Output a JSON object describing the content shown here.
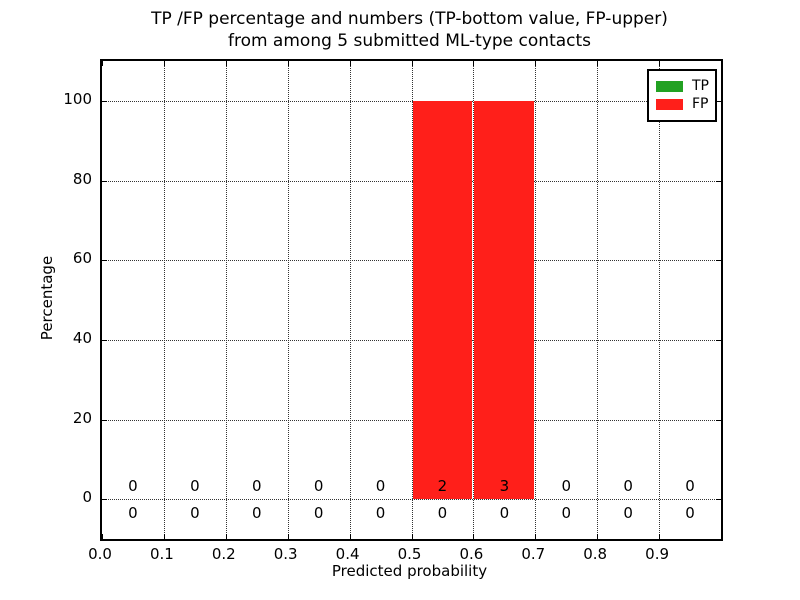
{
  "chart_data": {
    "type": "bar",
    "title": "TP /FP percentage and numbers (TP-bottom value, FP-upper)\nfrom among 5 submitted ML-type contacts",
    "title_line1": "TP /FP percentage and numbers (TP-bottom value, FP-upper)",
    "title_line2": "from among 5 submitted ML-type contacts",
    "xlabel": "Predicted probability",
    "ylabel": "Percentage",
    "xlim": [
      0.0,
      1.0
    ],
    "ylim": [
      -10,
      110
    ],
    "x_tick_values": [
      0.0,
      0.1,
      0.2,
      0.3,
      0.4,
      0.5,
      0.6,
      0.7,
      0.8,
      0.9
    ],
    "x_tick_labels": [
      "0.0",
      "0.1",
      "0.2",
      "0.3",
      "0.4",
      "0.5",
      "0.6",
      "0.7",
      "0.8",
      "0.9"
    ],
    "y_tick_values": [
      0,
      20,
      40,
      60,
      80,
      100
    ],
    "y_tick_labels": [
      "0",
      "20",
      "40",
      "60",
      "80",
      "100"
    ],
    "grid": "dotted",
    "bin_width": 0.1,
    "bin_centers": [
      0.05,
      0.15,
      0.25,
      0.35,
      0.45,
      0.55,
      0.65,
      0.75,
      0.85,
      0.95
    ],
    "series": [
      {
        "name": "TP",
        "color": "#22a122",
        "stack_order": "bottom",
        "percentages": [
          0,
          0,
          0,
          0,
          0,
          0,
          0,
          0,
          0,
          0
        ],
        "counts": [
          0,
          0,
          0,
          0,
          0,
          0,
          0,
          0,
          0,
          0
        ],
        "count_label_row": "bottom"
      },
      {
        "name": "FP",
        "color": "#ff1f1a",
        "stack_order": "top",
        "percentages": [
          0,
          0,
          0,
          0,
          0,
          100,
          100,
          0,
          0,
          0
        ],
        "counts": [
          0,
          0,
          0,
          0,
          0,
          2,
          3,
          0,
          0,
          0
        ],
        "count_label_row": "top"
      }
    ],
    "annotation_rows": {
      "top_y_percent": 3.2,
      "bottom_y_percent": -3.5
    },
    "legend": {
      "position": "upper right",
      "entries": [
        {
          "label": "TP",
          "color": "#22a122"
        },
        {
          "label": "FP",
          "color": "#ff1f1a"
        }
      ]
    },
    "axis_color": "#000000",
    "grid_color": "#333333",
    "background": "#ffffff"
  }
}
